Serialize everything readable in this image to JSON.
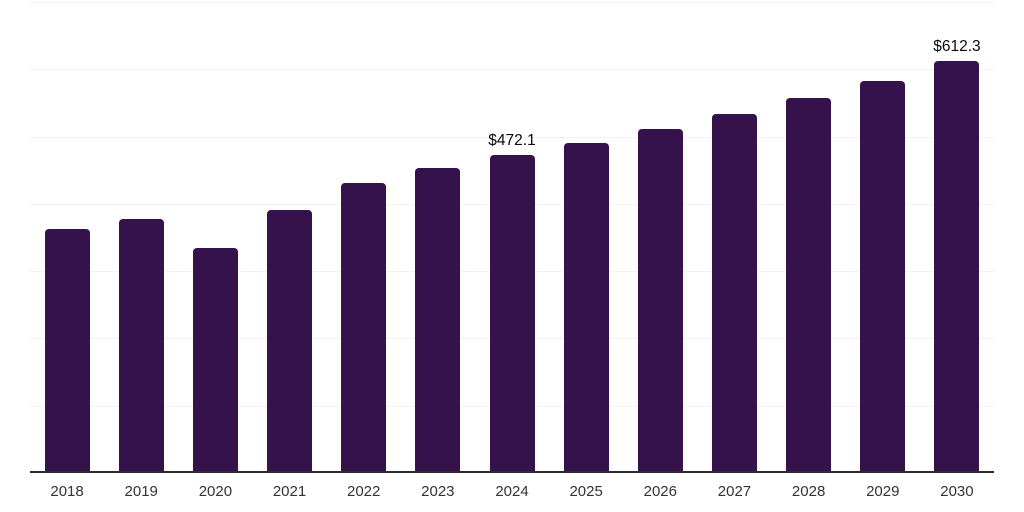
{
  "chart_data": {
    "type": "bar",
    "title": "",
    "xlabel": "",
    "ylabel": "",
    "categories": [
      "2018",
      "2019",
      "2020",
      "2021",
      "2022",
      "2023",
      "2024",
      "2025",
      "2026",
      "2027",
      "2028",
      "2029",
      "2030"
    ],
    "values": [
      363,
      377,
      334,
      391,
      431,
      453,
      472.1,
      490,
      512,
      534,
      557,
      583,
      612.3
    ],
    "data_labels": [
      {
        "category": "2024",
        "text": "$472.1"
      },
      {
        "category": "2030",
        "text": "$612.3"
      }
    ],
    "ylim": [
      0,
      700
    ],
    "gridline_step": 100,
    "grid": "horizontal",
    "y_axis_tick_labels": "none",
    "legend_position": "none",
    "colors": {
      "bar": "#36124d",
      "axis_line": "#2d2d2d",
      "gridline": "#f2f2f2",
      "tick_label": "#333333",
      "data_label": "#0a0a0a",
      "background": "#ffffff"
    }
  }
}
